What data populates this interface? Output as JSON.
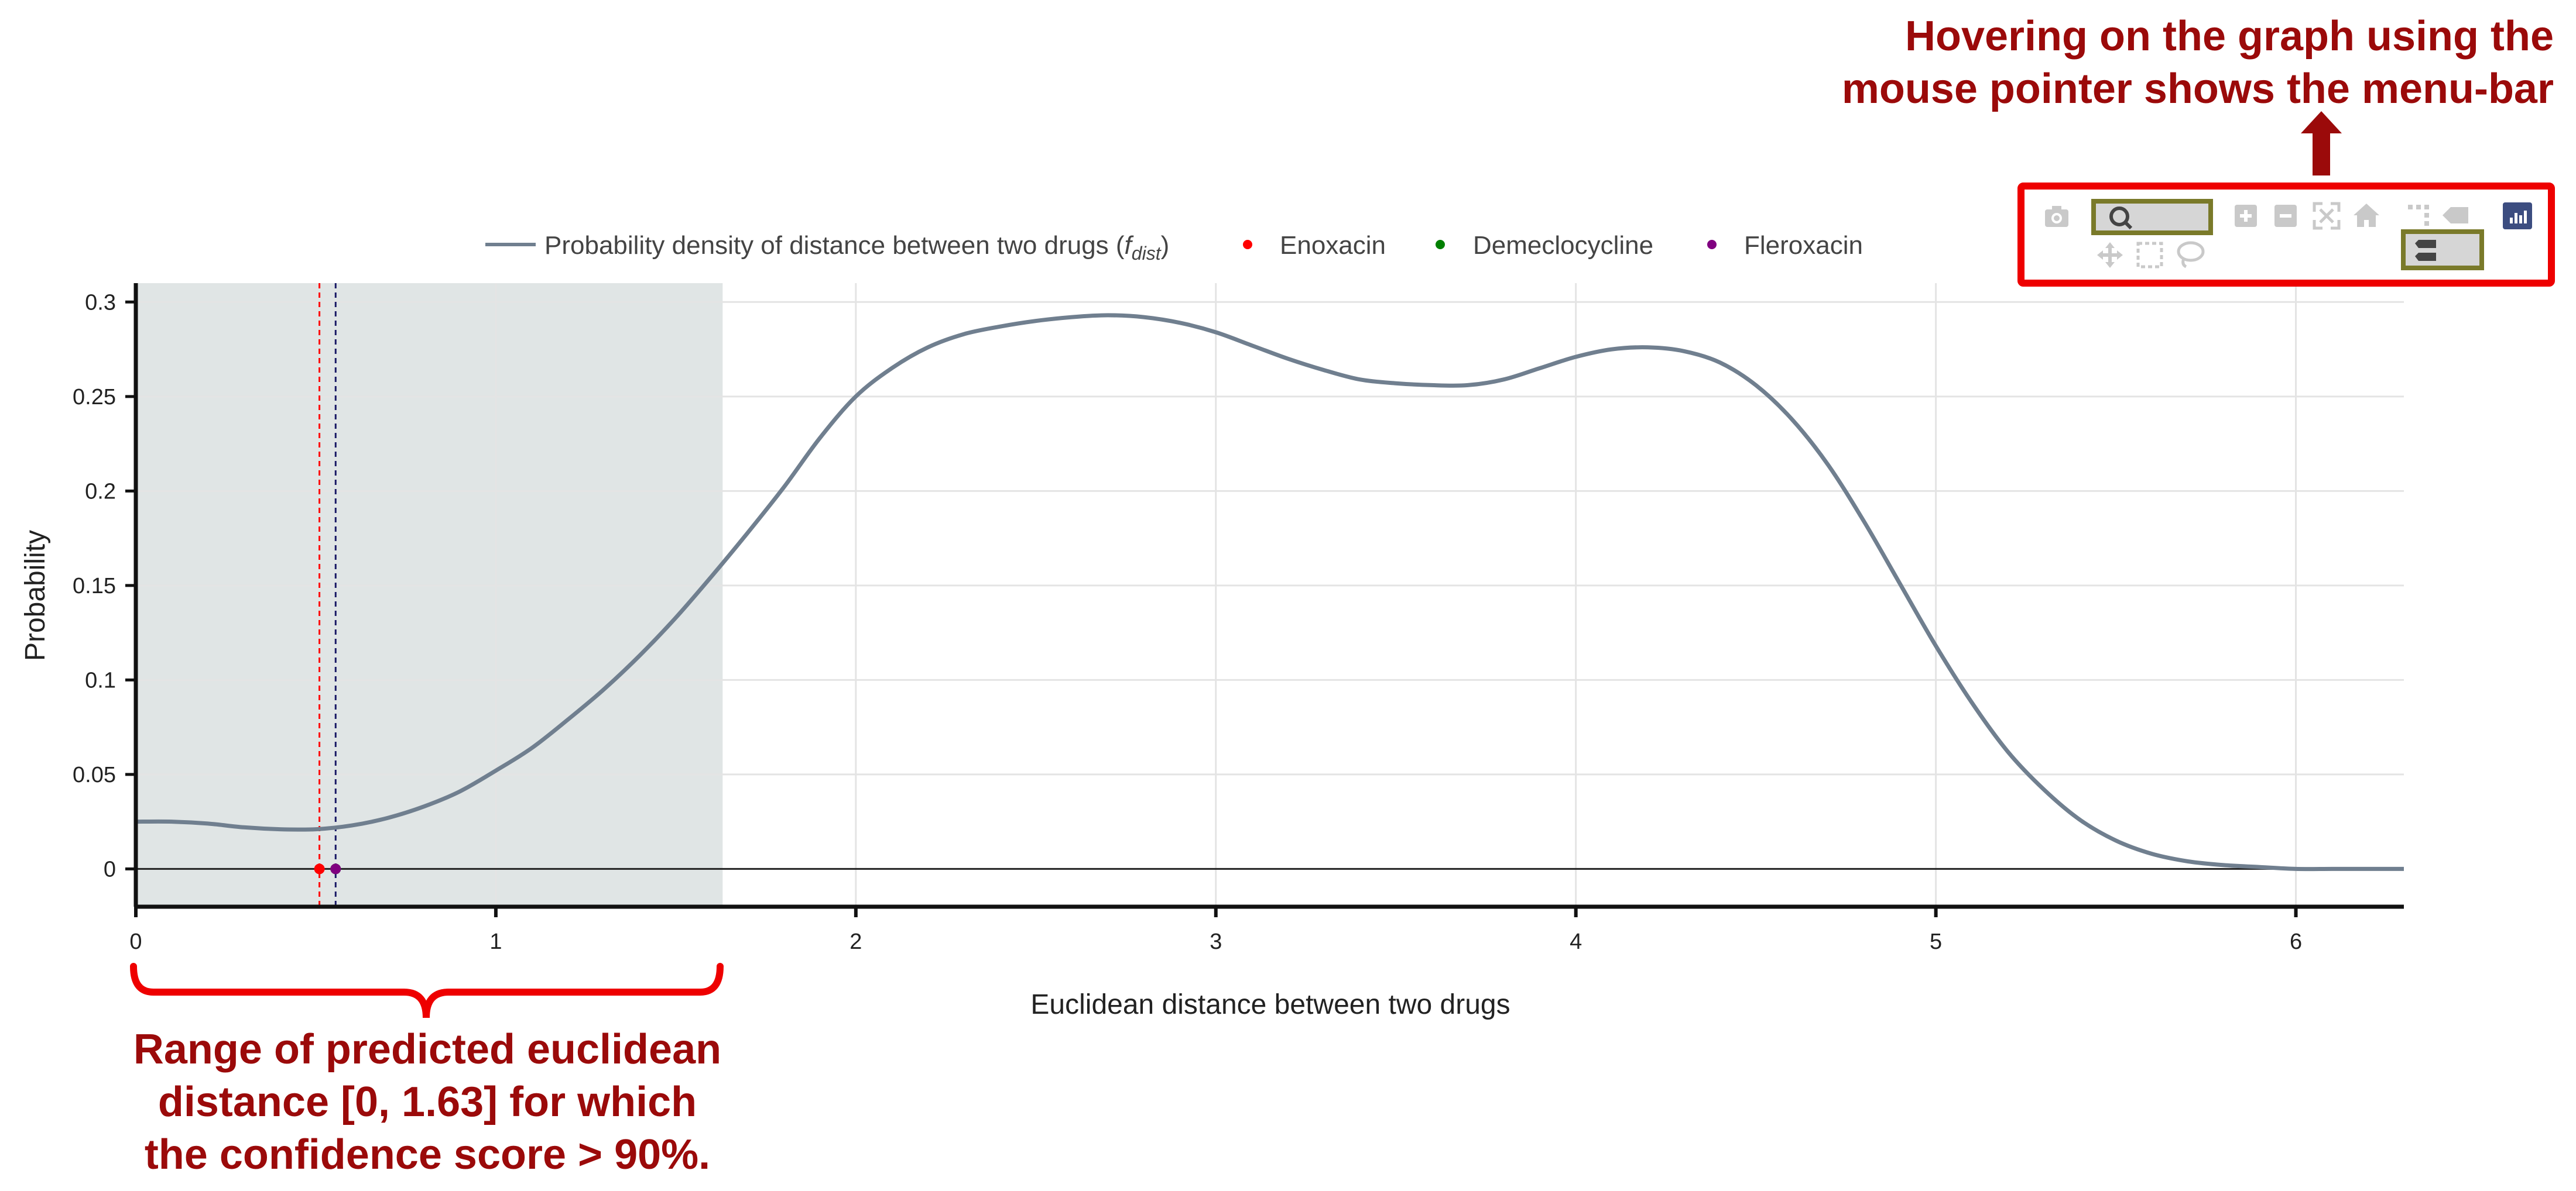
{
  "annotations": {
    "top_right": [
      "Hovering on the graph using the",
      "mouse pointer shows the menu-bar"
    ],
    "bottom_left": [
      "Range of predicted euclidean",
      "distance [0, 1.63] for which",
      "the confidence score > 90%."
    ]
  },
  "modebar": {
    "icons": [
      "camera-icon",
      "zoom-icon",
      "zoom-in-icon",
      "zoom-out-icon",
      "autoscale-icon",
      "reset-axes-icon",
      "spike-lines-icon",
      "hover-closest-icon",
      "plotly-logo-icon",
      "pan-icon",
      "box-select-icon",
      "lasso-select-icon",
      "hover-compare-icon"
    ]
  },
  "chart_data": {
    "type": "line",
    "xlabel": "Euclidean distance between two drugs",
    "ylabel": "Probability",
    "xlim": [
      0,
      6.3
    ],
    "ylim": [
      -0.02,
      0.31
    ],
    "xticks": [
      0,
      1,
      2,
      3,
      4,
      5,
      6
    ],
    "xtick_labels": [
      "0",
      "1",
      "2",
      "3",
      "4",
      "5",
      "6"
    ],
    "yticks": [
      0,
      0.05,
      0.1,
      0.15,
      0.2,
      0.25,
      0.3
    ],
    "ytick_labels": [
      "0",
      "0.05",
      "0.1",
      "0.15",
      "0.2",
      "0.25",
      "0.3"
    ],
    "grid": true,
    "legend_position": "top",
    "legend": [
      {
        "label_prefix": "Probability density of distance between two drugs (",
        "label_math": "f",
        "label_sub": "dist",
        "label_suffix": ")",
        "kind": "line",
        "color": "#707f8f"
      },
      {
        "label": "Enoxacin",
        "kind": "marker",
        "color": "#ff0000"
      },
      {
        "label": "Demeclocycline",
        "kind": "marker",
        "color": "#008000"
      },
      {
        "label": "Fleroxacin",
        "kind": "marker",
        "color": "#800080"
      }
    ],
    "shaded_region": {
      "x0": 0,
      "x1": 1.63,
      "color": "#e0e5e5"
    },
    "series": [
      {
        "name": "Probability density of distance between two drugs (fdist)",
        "color": "#707f8f",
        "x": [
          0,
          0.1,
          0.2,
          0.3,
          0.4,
          0.5,
          0.6,
          0.7,
          0.8,
          0.9,
          1.0,
          1.1,
          1.2,
          1.3,
          1.4,
          1.5,
          1.6,
          1.7,
          1.8,
          1.9,
          2.0,
          2.1,
          2.2,
          2.3,
          2.4,
          2.5,
          2.6,
          2.7,
          2.8,
          2.9,
          3.0,
          3.1,
          3.2,
          3.3,
          3.4,
          3.5,
          3.6,
          3.7,
          3.8,
          3.9,
          4.0,
          4.1,
          4.2,
          4.3,
          4.4,
          4.5,
          4.6,
          4.7,
          4.8,
          4.9,
          5.0,
          5.1,
          5.2,
          5.3,
          5.4,
          5.5,
          5.6,
          5.7,
          5.8,
          5.9,
          6.0,
          6.1,
          6.2,
          6.3
        ],
        "y": [
          0.025,
          0.025,
          0.024,
          0.022,
          0.021,
          0.021,
          0.023,
          0.027,
          0.033,
          0.041,
          0.052,
          0.064,
          0.079,
          0.095,
          0.113,
          0.133,
          0.155,
          0.178,
          0.202,
          0.228,
          0.25,
          0.265,
          0.276,
          0.283,
          0.287,
          0.29,
          0.292,
          0.293,
          0.292,
          0.289,
          0.284,
          0.277,
          0.27,
          0.264,
          0.259,
          0.257,
          0.256,
          0.256,
          0.259,
          0.265,
          0.271,
          0.275,
          0.276,
          0.274,
          0.268,
          0.256,
          0.238,
          0.214,
          0.184,
          0.151,
          0.118,
          0.088,
          0.062,
          0.042,
          0.026,
          0.015,
          0.008,
          0.004,
          0.002,
          0.001,
          0.0,
          0.0,
          0.0,
          0.0
        ]
      }
    ],
    "points": [
      {
        "name": "Enoxacin",
        "x": 0.51,
        "y": 0,
        "color": "#ff0000"
      },
      {
        "name": "Demeclocycline",
        "x": 0.555,
        "y": 0,
        "color": "#008000"
      },
      {
        "name": "Fleroxacin",
        "x": 0.555,
        "y": 0,
        "color": "#800080"
      }
    ],
    "vlines": [
      {
        "x": 0.51,
        "color": "#ff0000"
      },
      {
        "x": 0.555,
        "color": "#1a1a66"
      }
    ]
  }
}
